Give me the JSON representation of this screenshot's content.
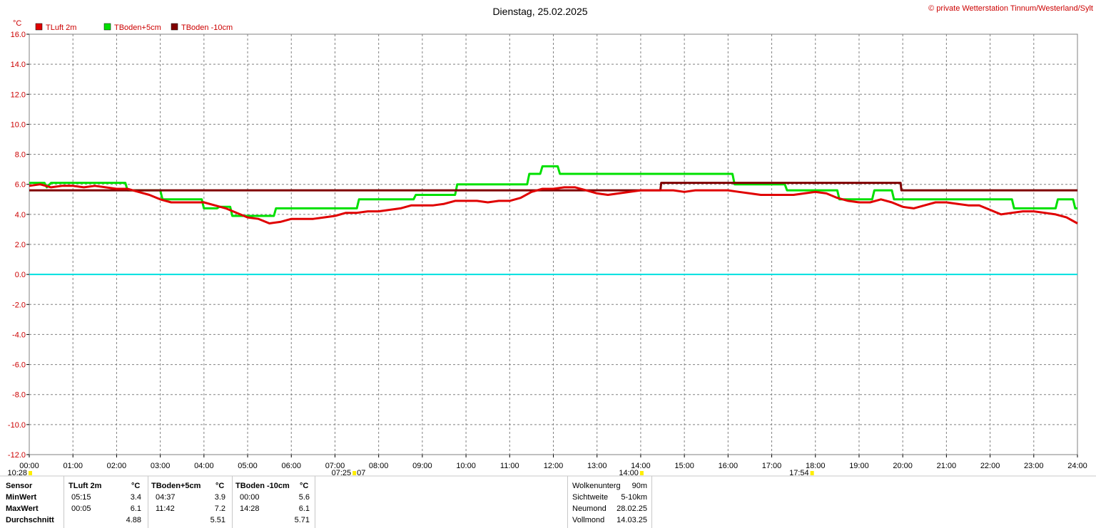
{
  "header": {
    "date_title": "Dienstag, 25.02.2025",
    "copyright": "© private Wetterstation Tinnum/Westerland/Sylt"
  },
  "colors": {
    "tluft": "#e00000",
    "tboden5": "#00e000",
    "tboden10": "#800000",
    "zero_line": "#00e0e0",
    "grid": "#808080",
    "axis_text": "#cc0000"
  },
  "chart_data": {
    "type": "line",
    "ylabel": "°C",
    "ylim": [
      -12,
      16
    ],
    "xlim": [
      "00:00",
      "24:00"
    ],
    "y_ticks": [
      "16.0",
      "14.0",
      "12.0",
      "10.0",
      "8.0",
      "6.0",
      "4.0",
      "2.0",
      "0.0",
      "-2.0",
      "-4.0",
      "-6.0",
      "-8.0",
      "-10.0",
      "-12.0"
    ],
    "x_ticks": [
      "00:00",
      "01:00",
      "02:00",
      "03:00",
      "04:00",
      "05:00",
      "06:00",
      "07:00",
      "08:00",
      "09:00",
      "10:00",
      "11:00",
      "12:00",
      "13:00",
      "14:00",
      "15:00",
      "16:00",
      "17:00",
      "18:00",
      "19:00",
      "20:00",
      "21:00",
      "22:00",
      "23:00",
      "24:00"
    ],
    "grid": true,
    "legend_position": "top-left",
    "series": [
      {
        "name": "TLuft 2m",
        "x": [
          0,
          0.25,
          0.5,
          0.75,
          1.0,
          1.25,
          1.5,
          1.75,
          2.0,
          2.25,
          2.5,
          2.75,
          3.0,
          3.25,
          3.5,
          3.75,
          4.0,
          4.25,
          4.5,
          4.75,
          5.0,
          5.25,
          5.5,
          5.75,
          6.0,
          6.25,
          6.5,
          6.75,
          7.0,
          7.25,
          7.5,
          7.75,
          8.0,
          8.25,
          8.5,
          8.75,
          9.0,
          9.25,
          9.5,
          9.75,
          10.0,
          10.25,
          10.5,
          10.75,
          11.0,
          11.25,
          11.5,
          11.75,
          12.0,
          12.25,
          12.5,
          12.75,
          13.0,
          13.25,
          13.5,
          13.75,
          14.0,
          14.25,
          14.5,
          14.75,
          15.0,
          15.25,
          15.5,
          15.75,
          16.0,
          16.25,
          16.5,
          16.75,
          17.0,
          17.25,
          17.5,
          17.75,
          18.0,
          18.25,
          18.5,
          18.75,
          19.0,
          19.25,
          19.5,
          19.75,
          20.0,
          20.25,
          20.5,
          20.75,
          21.0,
          21.25,
          21.5,
          21.75,
          22.0,
          22.25,
          22.5,
          22.75,
          23.0,
          23.25,
          23.5,
          23.75,
          24.0
        ],
        "values": [
          5.9,
          6.0,
          5.8,
          5.9,
          5.9,
          5.8,
          5.9,
          5.8,
          5.7,
          5.7,
          5.5,
          5.3,
          5.0,
          4.8,
          4.8,
          4.8,
          4.8,
          4.6,
          4.4,
          4.1,
          3.8,
          3.7,
          3.4,
          3.5,
          3.7,
          3.7,
          3.7,
          3.8,
          3.9,
          4.1,
          4.1,
          4.2,
          4.2,
          4.3,
          4.4,
          4.6,
          4.6,
          4.6,
          4.7,
          4.9,
          4.9,
          4.9,
          4.8,
          4.9,
          4.9,
          5.1,
          5.5,
          5.7,
          5.7,
          5.8,
          5.8,
          5.6,
          5.4,
          5.3,
          5.4,
          5.5,
          5.6,
          5.6,
          5.6,
          5.6,
          5.5,
          5.6,
          5.6,
          5.6,
          5.6,
          5.5,
          5.4,
          5.3,
          5.3,
          5.3,
          5.3,
          5.4,
          5.5,
          5.4,
          5.1,
          4.9,
          4.8,
          4.8,
          5.0,
          4.8,
          4.5,
          4.4,
          4.6,
          4.8,
          4.8,
          4.7,
          4.6,
          4.6,
          4.3,
          4.0,
          4.1,
          4.2,
          4.2,
          4.1,
          4.0,
          3.8,
          3.4
        ]
      },
      {
        "name": "TBoden+5cm",
        "x": [
          0,
          0.35,
          0.4,
          0.5,
          2.2,
          2.25,
          3.0,
          3.05,
          3.95,
          4.0,
          4.3,
          4.35,
          4.6,
          4.65,
          5.6,
          5.65,
          7.5,
          7.55,
          8.8,
          8.85,
          9.75,
          9.8,
          11.4,
          11.45,
          11.7,
          11.75,
          12.1,
          12.15,
          12.7,
          12.75,
          16.1,
          16.15,
          17.3,
          17.35,
          18.5,
          18.55,
          19.3,
          19.35,
          19.75,
          19.8,
          21.5,
          21.55,
          22.5,
          22.55,
          23.5,
          23.55,
          23.9,
          23.95,
          24.0
        ],
        "values": [
          6.1,
          6.1,
          5.8,
          6.1,
          6.1,
          5.6,
          5.6,
          5.0,
          5.0,
          4.4,
          4.4,
          4.5,
          4.5,
          3.9,
          3.9,
          4.4,
          4.4,
          5.0,
          5.0,
          5.3,
          5.3,
          6.0,
          6.0,
          6.7,
          6.7,
          7.2,
          7.2,
          6.7,
          6.7,
          6.7,
          6.7,
          6.0,
          6.0,
          5.6,
          5.6,
          5.0,
          5.0,
          5.6,
          5.6,
          5.0,
          5.0,
          5.0,
          5.0,
          4.4,
          4.4,
          5.0,
          5.0,
          4.4,
          4.4
        ]
      },
      {
        "name": "TBoden -10cm",
        "x": [
          0,
          14.45,
          14.47,
          19.95,
          19.97,
          24.0
        ],
        "values": [
          5.6,
          5.6,
          6.1,
          6.1,
          5.6,
          5.6
        ]
      }
    ],
    "zero_line_value": 0.0,
    "time_markers": [
      {
        "label": "10:28",
        "hour": 0.0
      },
      {
        "label": "07:25",
        "hour": 7.42,
        "suffix": "07"
      },
      {
        "label": "14:00",
        "hour": 14.0
      },
      {
        "label": "17:54",
        "hour": 17.9
      }
    ]
  },
  "stats_table": {
    "sensor_col": [
      "Sensor",
      "MinWert",
      "MaxWert",
      "Durchschnitt"
    ],
    "tluft": {
      "header": "TLuft 2m",
      "unit": "°C",
      "min_time": "05:15",
      "min_val": "3.4",
      "max_time": "00:05",
      "max_val": "6.1",
      "avg": "4.88"
    },
    "tboden5": {
      "header": "TBoden+5cm",
      "unit": "°C",
      "min_time": "04:37",
      "min_val": "3.9",
      "max_time": "11:42",
      "max_val": "7.2",
      "avg": "5.51"
    },
    "tboden10": {
      "header": "TBoden -10cm",
      "unit": "°C",
      "min_time": "00:00",
      "min_val": "5.6",
      "max_time": "14:28",
      "max_val": "6.1",
      "avg": "5.71"
    }
  },
  "weather_info": {
    "rows": [
      {
        "label": "Wolkenunterg",
        "value": "90m"
      },
      {
        "label": "Sichtweite",
        "value": "5-10km"
      },
      {
        "label": "Neumond",
        "value": "28.02.25"
      },
      {
        "label": "Vollmond",
        "value": "14.03.25"
      }
    ]
  }
}
